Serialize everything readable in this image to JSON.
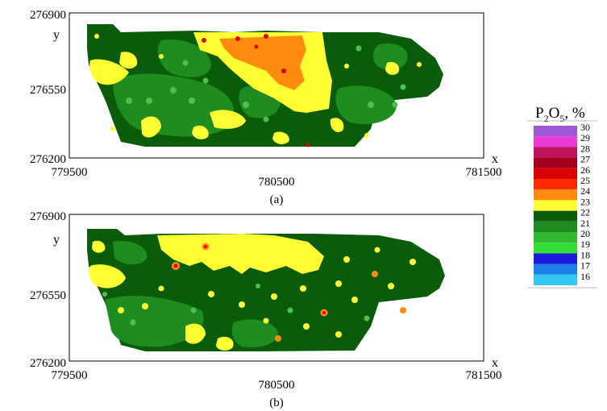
{
  "panels": [
    {
      "caption": "(a)",
      "x_axis": {
        "label": "x",
        "ticks": [
          "779500",
          "780500",
          "781500"
        ]
      },
      "y_axis": {
        "label": "y",
        "ticks": [
          "276900",
          "276550",
          "276200"
        ]
      },
      "dominant_value_range": "23-24 % (yellow) with 24-26 % (orange) in the north-central area"
    },
    {
      "caption": "(b)",
      "x_axis": {
        "label": "x",
        "ticks": [
          "779500",
          "780500",
          "781500"
        ]
      },
      "y_axis": {
        "label": "y",
        "ticks": [
          "276900",
          "276550",
          "276200"
        ]
      },
      "dominant_value_range": "22-23 % (dark green) with scattered yellow and orange spots"
    }
  ],
  "legend": {
    "title_main": "P",
    "title_sub1": "2",
    "title_mid": "O",
    "title_sub2": "5",
    "title_tail": ", %",
    "classes": [
      {
        "label": "30",
        "color": "#9b59d6"
      },
      {
        "label": "29",
        "color": "#e83ad6"
      },
      {
        "label": "28",
        "color": "#c0145a"
      },
      {
        "label": "27",
        "color": "#a3001e"
      },
      {
        "label": "26",
        "color": "#d80000"
      },
      {
        "label": "25",
        "color": "#ff2a00"
      },
      {
        "label": "24",
        "color": "#ff8c10"
      },
      {
        "label": "23",
        "color": "#ffff33"
      },
      {
        "label": "22",
        "color": "#0a5c0a"
      },
      {
        "label": "21",
        "color": "#1f8a1f"
      },
      {
        "label": "20",
        "color": "#33b833"
      },
      {
        "label": "19",
        "color": "#33dd33"
      },
      {
        "label": "18",
        "color": "#1a1adb"
      },
      {
        "label": "17",
        "color": "#1e7fe6"
      },
      {
        "label": "16",
        "color": "#30c8f0"
      }
    ],
    "bottom_label": "16"
  },
  "colors": {
    "dark_green": "#0a5c0a",
    "mid_green": "#1e8c1e",
    "light_green": "#4ec04e",
    "yellow": "#ffff33",
    "orange": "#ff8c10",
    "red": "#e00000"
  }
}
